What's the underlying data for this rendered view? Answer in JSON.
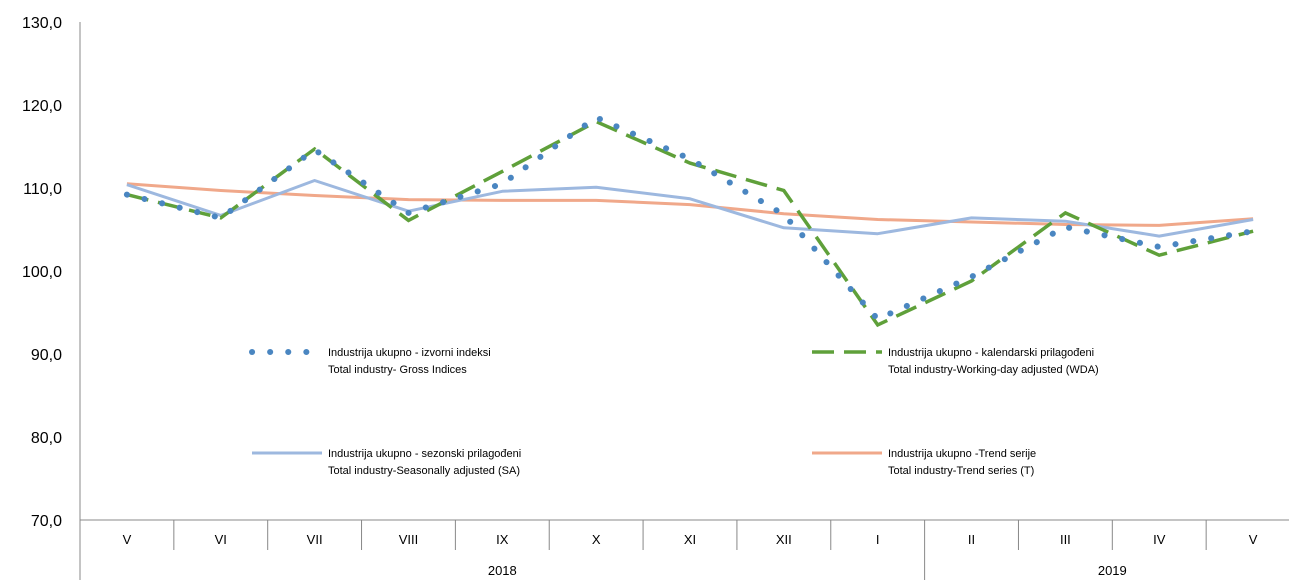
{
  "chart_data": {
    "type": "line",
    "title": "",
    "xlabel": "",
    "ylabel": "",
    "ylim": [
      70,
      130
    ],
    "yticks": [
      "70,0",
      "80,0",
      "90,0",
      "100,0",
      "110,0",
      "120,0",
      "130,0"
    ],
    "ytick_values": [
      70,
      80,
      90,
      100,
      110,
      120,
      130
    ],
    "grid": false,
    "categories": [
      "V",
      "VI",
      "VII",
      "VIII",
      "IX",
      "X",
      "XI",
      "XII",
      "I",
      "II",
      "III",
      "IV",
      "V"
    ],
    "years": [
      {
        "label": "2018",
        "start": 0,
        "end": 8
      },
      {
        "label": "2019",
        "start": 9,
        "end": 12
      }
    ],
    "legend_placement": "inside-plot",
    "series": [
      {
        "key": "gross",
        "name_line1": "Industrija ukupno - izvorni indeksi",
        "name_line2": "Total industry- Gross Indices",
        "color": "#4a86c1",
        "style": "dotted",
        "values": [
          109.2,
          106.4,
          114.6,
          107.0,
          110.5,
          118.5,
          113.5,
          106.8,
          94.2,
          99.3,
          105.3,
          102.9,
          104.8
        ]
      },
      {
        "key": "wda",
        "name_line1": "Industrija ukupno - kalendarski prilagođeni",
        "name_line2": "Total industry-Working-day adjusted (WDA)",
        "color": "#5fa03a",
        "style": "dashed",
        "values": [
          109.2,
          106.4,
          114.7,
          106.1,
          112.0,
          118.0,
          113.0,
          109.7,
          93.5,
          98.8,
          107.0,
          101.9,
          104.8
        ]
      },
      {
        "key": "sa",
        "name_line1": "Industrija ukupno - sezonski prilagođeni",
        "name_line2": "Total industry-Seasonally adjusted (SA)",
        "color": "#9db8df",
        "style": "solid",
        "values": [
          110.4,
          106.7,
          110.9,
          107.2,
          109.6,
          110.1,
          108.7,
          105.2,
          104.5,
          106.4,
          106.0,
          104.2,
          106.2
        ]
      },
      {
        "key": "trend",
        "name_line1": "Industrija ukupno -Trend serije",
        "name_line2": "Total industry-Trend series (T)",
        "color": "#f0a88a",
        "style": "solid",
        "values": [
          110.5,
          109.7,
          109.1,
          108.6,
          108.5,
          108.5,
          108.0,
          106.9,
          106.2,
          105.9,
          105.6,
          105.5,
          106.3
        ]
      }
    ]
  }
}
